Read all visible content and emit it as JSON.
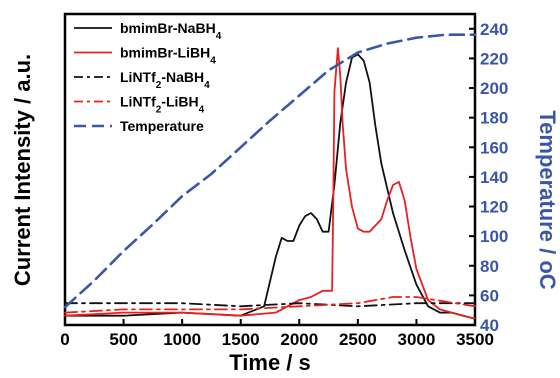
{
  "chart_data": {
    "type": "line",
    "xlabel": "Time / s",
    "ylabel_left": "Current Intensity / a.u.",
    "ylabel_right": "Temperature / oC",
    "xlim": [
      0,
      3500
    ],
    "xticks": [
      "0",
      "500",
      "1000",
      "1500",
      "2000",
      "2500",
      "3000",
      "3500"
    ],
    "ylim_right": [
      40,
      250
    ],
    "yticks_right": [
      "40",
      "60",
      "80",
      "100",
      "120",
      "140",
      "160",
      "180",
      "200",
      "220",
      "240"
    ],
    "ylim_left": [
      0,
      100
    ],
    "legend_position": "top-left",
    "colors": {
      "right_axis": "#3a57a7",
      "red": "#e8201f",
      "black": "#111111",
      "blue": "#3a57a7"
    },
    "series": [
      {
        "name": "bmimBr-NaBH4",
        "axis": "left",
        "color": "#111111",
        "dash": "solid",
        "x": [
          0,
          500,
          1000,
          1500,
          1700,
          1800,
          1850,
          1900,
          1950,
          2000,
          2050,
          2100,
          2150,
          2200,
          2250,
          2300,
          2350,
          2400,
          2450,
          2500,
          2550,
          2600,
          2650,
          2700,
          2800,
          2900,
          3000,
          3100,
          3200,
          3300,
          3400,
          3500
        ],
        "y": [
          3,
          3,
          4,
          3,
          6,
          22,
          28,
          27,
          27,
          32,
          35,
          36,
          34,
          30,
          30,
          45,
          65,
          78,
          86,
          87,
          85,
          78,
          64,
          52,
          36,
          24,
          13,
          6,
          4,
          4,
          3,
          2
        ]
      },
      {
        "name": "bmimBr-LiBH4",
        "axis": "left",
        "color": "#e8201f",
        "dash": "solid",
        "x": [
          0,
          500,
          1000,
          1500,
          1800,
          1900,
          2000,
          2100,
          2200,
          2280,
          2290,
          2300,
          2330,
          2350,
          2370,
          2400,
          2450,
          2500,
          2550,
          2600,
          2700,
          2750,
          2800,
          2850,
          2900,
          2950,
          3000,
          3100,
          3200,
          3300,
          3400,
          3500
        ],
        "y": [
          3,
          4,
          4,
          3,
          4,
          6,
          8,
          9,
          11,
          11,
          40,
          75,
          89,
          80,
          65,
          50,
          38,
          31,
          30,
          30,
          34,
          40,
          45,
          46,
          40,
          28,
          18,
          8,
          5,
          4,
          3,
          2
        ]
      },
      {
        "name": "LiNTf2-NaBH4",
        "axis": "left",
        "color": "#111111",
        "dash": "dashdot",
        "x": [
          0,
          500,
          1000,
          1500,
          2000,
          2500,
          3000,
          3500
        ],
        "y": [
          7,
          7,
          7,
          6,
          7,
          6,
          7,
          7
        ]
      },
      {
        "name": "LiNTf2-LiBH4",
        "axis": "left",
        "color": "#e8201f",
        "dash": "dashdot",
        "x": [
          0,
          500,
          1000,
          1500,
          2000,
          2500,
          2800,
          3000,
          3500
        ],
        "y": [
          4,
          5,
          5,
          5,
          6,
          7,
          9,
          9,
          6
        ]
      },
      {
        "name": "Temperature",
        "axis": "right",
        "color": "#3a57a7",
        "dash": "dashed",
        "x": [
          0,
          250,
          500,
          750,
          1000,
          1250,
          1500,
          1750,
          2000,
          2250,
          2500,
          2750,
          3000,
          3250,
          3500
        ],
        "y": [
          52,
          70,
          90,
          108,
          127,
          142,
          160,
          178,
          195,
          212,
          224,
          230,
          234,
          236,
          236
        ]
      }
    ]
  }
}
